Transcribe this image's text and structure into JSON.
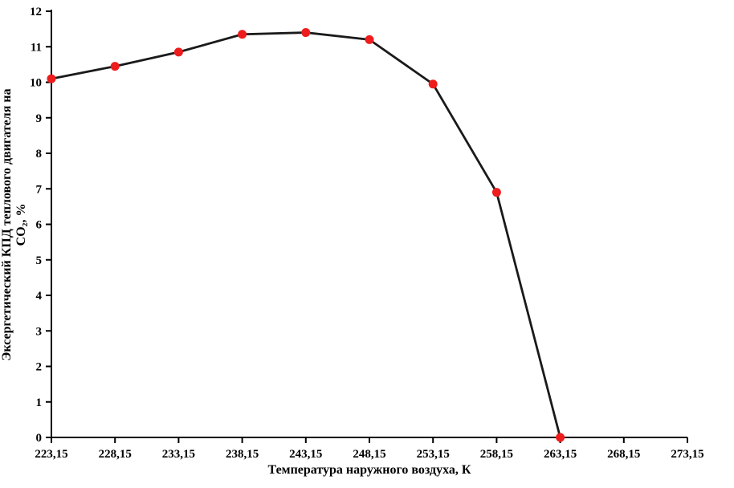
{
  "chart_data": {
    "type": "line",
    "title": "",
    "xlabel": "Температура наружного воздуха, К",
    "ylabel": "Эксергетический КПД теплового двигателя на CO₂, %",
    "ylabel_lines": [
      "Эксергетический КПД теплового двигателя на",
      "CO₂, %"
    ],
    "x": [
      223.15,
      228.15,
      233.15,
      238.15,
      243.15,
      248.15,
      253.15,
      258.15,
      263.15
    ],
    "values": [
      10.1,
      10.45,
      10.85,
      11.35,
      11.4,
      11.2,
      9.95,
      6.9,
      0.0
    ],
    "categories": [
      "223,15",
      "228,15",
      "233,15",
      "238,15",
      "243,15",
      "248,15",
      "253,15",
      "258,15",
      "263,15",
      "268,15",
      "273,15"
    ],
    "x_ticks": [
      223.15,
      228.15,
      233.15,
      238.15,
      243.15,
      248.15,
      253.15,
      258.15,
      263.15,
      268.15,
      273.15
    ],
    "y_ticks": [
      0,
      1,
      2,
      3,
      4,
      5,
      6,
      7,
      8,
      9,
      10,
      11,
      12
    ],
    "xlim": [
      223.15,
      273.15
    ],
    "ylim": [
      0,
      12
    ],
    "grid": false,
    "legend": "none",
    "line_color": "#1a1a1a",
    "marker_color": "#ee1c1c",
    "axis_color": "#000000"
  }
}
